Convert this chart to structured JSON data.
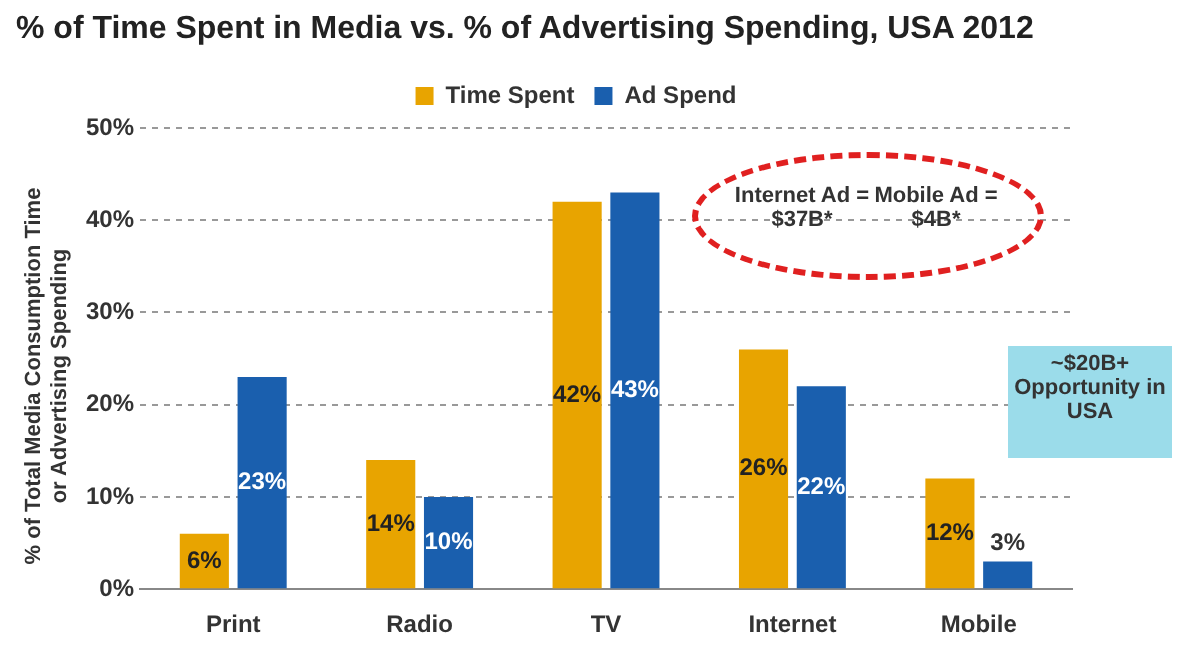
{
  "chart_data": {
    "type": "bar",
    "title": "% of Time Spent in Media vs. % of Advertising Spending, USA 2012",
    "ylabel": "% of Total Media Consumption Time or Advertising Spending",
    "categories": [
      "Print",
      "Radio",
      "TV",
      "Internet",
      "Mobile"
    ],
    "series": [
      {
        "name": "Time Spent",
        "color": "#e8a400",
        "values": [
          6,
          14,
          42,
          26,
          12
        ],
        "value_labels": [
          "6%",
          "14%",
          "42%",
          "26%",
          "12%"
        ]
      },
      {
        "name": "Ad Spend",
        "color": "#1a5fae",
        "values": [
          23,
          10,
          43,
          22,
          3
        ],
        "value_labels": [
          "23%",
          "10%",
          "43%",
          "22%",
          "3%"
        ]
      }
    ],
    "ylim": [
      0,
      50
    ],
    "yticks": [
      {
        "value": 0,
        "label": "0%"
      },
      {
        "value": 10,
        "label": "10%"
      },
      {
        "value": 20,
        "label": "20%"
      },
      {
        "value": 30,
        "label": "30%"
      },
      {
        "value": 40,
        "label": "40%"
      },
      {
        "value": 50,
        "label": "50%"
      }
    ],
    "grid": "y",
    "legend": "top",
    "annotations": [
      "Internet Ad = $37B*",
      "Mobile Ad = $4B*",
      "~$20B+ Opportunity in USA"
    ]
  }
}
